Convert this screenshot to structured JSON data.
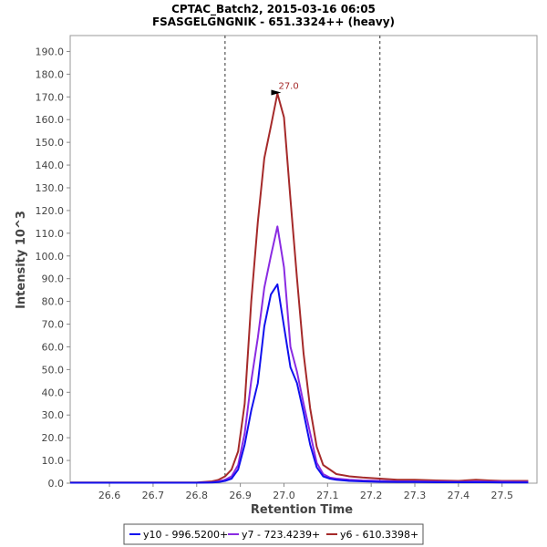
{
  "chart_data": {
    "type": "line",
    "title": "CPTAC_Batch2, 2015-03-16 06:05",
    "subtitle": "FSASGELGNGNIK - 651.3324++ (heavy)",
    "xlabel": "Retention Time",
    "ylabel": "Intensity 10^3",
    "xlim": [
      26.51,
      27.58
    ],
    "ylim": [
      0,
      197
    ],
    "x_ticks": [
      26.6,
      26.7,
      26.8,
      26.9,
      27.0,
      27.1,
      27.2,
      27.3,
      27.4,
      27.5
    ],
    "x_tick_labels": [
      "26.6",
      "26.7",
      "26.8",
      "26.9",
      "27.0",
      "27.1",
      "27.2",
      "27.3",
      "27.4",
      "27.5"
    ],
    "y_ticks": [
      0,
      10,
      20,
      30,
      40,
      50,
      60,
      70,
      80,
      90,
      100,
      110,
      120,
      130,
      140,
      150,
      160,
      170,
      180,
      190
    ],
    "y_tick_labels": [
      "0.0",
      "10.0",
      "20.0",
      "30.0",
      "40.0",
      "50.0",
      "60.0",
      "70.0",
      "80.0",
      "90.0",
      "100.0",
      "110.0",
      "120.0",
      "130.0",
      "140.0",
      "150.0",
      "160.0",
      "170.0",
      "180.0",
      "190.0"
    ],
    "boundaries": [
      26.865,
      27.22
    ],
    "x": [
      26.51,
      26.55,
      26.6,
      26.65,
      26.7,
      26.75,
      26.8,
      26.835,
      26.85,
      26.865,
      26.88,
      26.895,
      26.91,
      26.925,
      26.94,
      26.955,
      26.97,
      26.985,
      27.0,
      27.015,
      27.03,
      27.045,
      27.06,
      27.075,
      27.09,
      27.105,
      27.12,
      27.15,
      27.18,
      27.22,
      27.26,
      27.3,
      27.35,
      27.4,
      27.44,
      27.47,
      27.5,
      27.53,
      27.56
    ],
    "series": [
      {
        "name": "y10 - 996.5200+",
        "color": "#1010ee",
        "values": [
          0.2,
          0.2,
          0.2,
          0.2,
          0.2,
          0.2,
          0.2,
          0.3,
          0.5,
          1.0,
          2.0,
          6.0,
          17.0,
          32.0,
          44.0,
          69.0,
          83.0,
          87.5,
          69.0,
          51.0,
          44.0,
          31.0,
          17.0,
          7.0,
          3.0,
          2.0,
          1.5,
          1.0,
          0.8,
          0.6,
          0.5,
          0.5,
          0.4,
          0.4,
          0.4,
          0.4,
          0.3,
          0.3,
          0.3
        ]
      },
      {
        "name": "y7 - 723.4239+",
        "color": "#8a2be2",
        "values": [
          0.2,
          0.2,
          0.2,
          0.2,
          0.2,
          0.2,
          0.2,
          0.4,
          0.8,
          1.5,
          3.0,
          8.0,
          22.0,
          45.0,
          64.0,
          86.0,
          100.0,
          113.0,
          95.0,
          60.0,
          49.0,
          35.0,
          22.0,
          9.0,
          4.0,
          2.5,
          2.0,
          1.5,
          1.2,
          1.0,
          0.8,
          0.8,
          0.7,
          0.6,
          0.8,
          0.7,
          0.7,
          0.6,
          0.6
        ]
      },
      {
        "name": "y6 - 610.3398+",
        "color": "#a52a2a",
        "values": [
          0.3,
          0.3,
          0.3,
          0.3,
          0.3,
          0.3,
          0.3,
          0.8,
          1.5,
          3.0,
          6.0,
          14.0,
          35.0,
          80.0,
          115.0,
          143.0,
          157.0,
          171.5,
          161.0,
          125.0,
          90.0,
          57.0,
          33.0,
          16.0,
          8.0,
          6.0,
          4.0,
          3.0,
          2.5,
          2.0,
          1.5,
          1.5,
          1.2,
          1.0,
          1.5,
          1.2,
          1.0,
          1.0,
          1.0
        ]
      }
    ],
    "peak_annotation": {
      "label": "27.0",
      "x": 27.0,
      "y": 171.5,
      "color": "#a52a2a"
    }
  }
}
